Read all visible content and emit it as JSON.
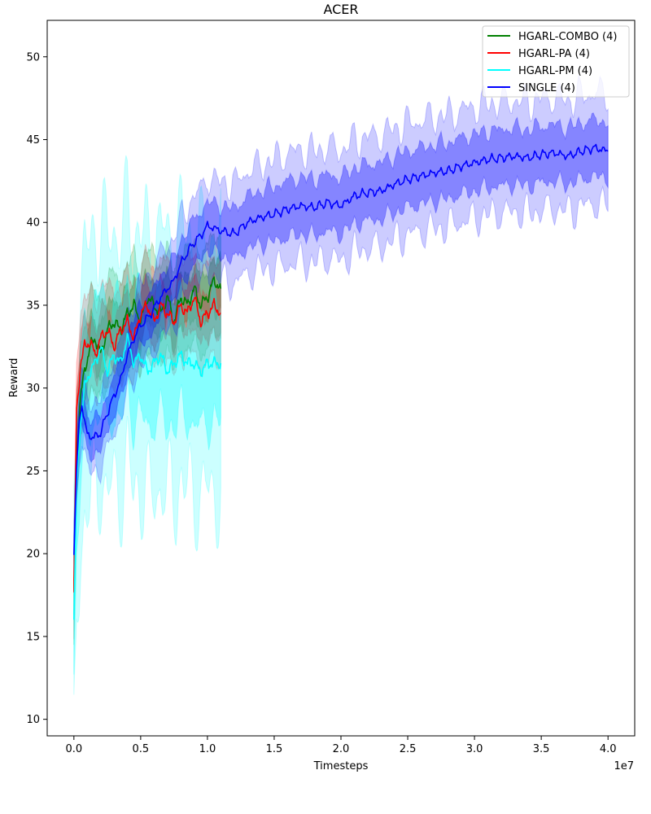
{
  "chart_data": {
    "type": "line",
    "title": "ACER",
    "xlabel": "Timesteps",
    "ylabel": "Reward",
    "x_offset_text": "1e7",
    "x_multiplier": 10000000,
    "xlim": [
      -0.2,
      4.2
    ],
    "ylim": [
      9.0,
      52.2
    ],
    "x_ticks": [
      0.0,
      0.5,
      1.0,
      1.5,
      2.0,
      2.5,
      3.0,
      3.5,
      4.0
    ],
    "x_tick_labels": [
      "0.0",
      "0.5",
      "1.0",
      "1.5",
      "2.0",
      "2.5",
      "3.0",
      "3.5",
      "4.0"
    ],
    "y_ticks": [
      10,
      15,
      20,
      25,
      30,
      35,
      40,
      45,
      50
    ],
    "y_tick_labels": [
      "10",
      "15",
      "20",
      "25",
      "30",
      "35",
      "40",
      "45",
      "50"
    ],
    "legend": {
      "placement": "top-right",
      "entries": [
        "HGARL-COMBO (4)",
        "HGARL-PA (4)",
        "HGARL-PM (4)",
        "SINGLE (4)"
      ]
    },
    "series": [
      {
        "name": "HGARL-COMBO (4)",
        "color": "#008000",
        "x": [
          0.0,
          0.02,
          0.05,
          0.08,
          0.12,
          0.16,
          0.2,
          0.25,
          0.3,
          0.35,
          0.4,
          0.45,
          0.5,
          0.55,
          0.6,
          0.65,
          0.7,
          0.75,
          0.8,
          0.85,
          0.9,
          0.95,
          1.0,
          1.05,
          1.1
        ],
        "y": [
          17.5,
          26.0,
          29.5,
          31.0,
          32.5,
          33.0,
          32.0,
          33.5,
          34.0,
          33.5,
          34.5,
          35.0,
          34.0,
          35.5,
          35.0,
          34.5,
          35.5,
          34.0,
          35.5,
          35.0,
          36.0,
          35.0,
          35.5,
          36.5,
          36.0
        ],
        "band": [
          {
            "inner": [
              1.0,
              2.0
            ],
            "outer": [
              2.5,
              3.5
            ]
          }
        ]
      },
      {
        "name": "HGARL-PA (4)",
        "color": "#ff0000",
        "x": [
          0.0,
          0.02,
          0.05,
          0.08,
          0.12,
          0.16,
          0.2,
          0.25,
          0.3,
          0.35,
          0.4,
          0.45,
          0.5,
          0.55,
          0.6,
          0.65,
          0.7,
          0.75,
          0.8,
          0.85,
          0.9,
          0.95,
          1.0,
          1.05,
          1.1
        ],
        "y": [
          17.5,
          28.5,
          31.5,
          32.5,
          32.8,
          32.0,
          33.0,
          33.5,
          32.5,
          33.5,
          34.0,
          33.0,
          34.5,
          35.0,
          34.0,
          35.0,
          34.5,
          34.0,
          35.0,
          34.5,
          35.5,
          34.0,
          34.5,
          35.0,
          34.5
        ],
        "band": [
          {
            "inner": [
              1.0,
              2.0
            ],
            "outer": [
              2.5,
              3.5
            ]
          }
        ]
      },
      {
        "name": "HGARL-PM (4)",
        "color": "#00ffff",
        "x": [
          0.0,
          0.02,
          0.05,
          0.08,
          0.12,
          0.16,
          0.2,
          0.25,
          0.3,
          0.35,
          0.4,
          0.45,
          0.5,
          0.55,
          0.6,
          0.65,
          0.7,
          0.75,
          0.8,
          0.85,
          0.9,
          0.95,
          1.0,
          1.05,
          1.1
        ],
        "y": [
          16.0,
          24.0,
          28.0,
          30.0,
          31.0,
          31.5,
          32.5,
          31.0,
          32.0,
          31.5,
          33.0,
          31.5,
          32.0,
          31.0,
          31.5,
          32.0,
          31.0,
          31.5,
          32.0,
          31.5,
          31.5,
          31.0,
          31.5,
          31.5,
          31.5
        ],
        "band": [
          {
            "inner": [
              2.0,
              5.0
            ],
            "outer": [
              4.0,
              11.5
            ]
          }
        ]
      },
      {
        "name": "SINGLE (4)",
        "color": "#0000ff",
        "x": [
          0.0,
          0.02,
          0.04,
          0.06,
          0.08,
          0.1,
          0.15,
          0.2,
          0.25,
          0.3,
          0.35,
          0.4,
          0.45,
          0.5,
          0.55,
          0.6,
          0.65,
          0.7,
          0.75,
          0.8,
          0.85,
          0.9,
          0.95,
          1.0,
          1.1,
          1.2,
          1.3,
          1.4,
          1.5,
          1.6,
          1.7,
          1.8,
          1.9,
          2.0,
          2.1,
          2.2,
          2.3,
          2.4,
          2.5,
          2.6,
          2.7,
          2.8,
          2.9,
          3.0,
          3.1,
          3.2,
          3.3,
          3.4,
          3.5,
          3.6,
          3.7,
          3.8,
          3.9,
          4.0
        ],
        "y": [
          20.0,
          25.0,
          28.0,
          29.0,
          28.0,
          27.2,
          27.0,
          27.3,
          28.5,
          29.5,
          30.5,
          32.0,
          33.0,
          33.8,
          34.2,
          34.8,
          35.5,
          36.0,
          36.5,
          37.5,
          38.2,
          38.8,
          39.2,
          39.8,
          39.5,
          39.3,
          40.0,
          40.3,
          40.5,
          40.8,
          41.0,
          40.9,
          41.2,
          41.0,
          41.6,
          41.8,
          41.9,
          42.3,
          42.6,
          42.8,
          43.0,
          43.1,
          43.4,
          43.6,
          43.8,
          43.9,
          44.0,
          43.9,
          44.1,
          44.2,
          44.0,
          44.3,
          44.5,
          44.3
        ],
        "band": [
          {
            "inner": [
              1.2,
              2.2
            ],
            "outer": [
              2.2,
              4.5
            ]
          }
        ]
      }
    ]
  }
}
